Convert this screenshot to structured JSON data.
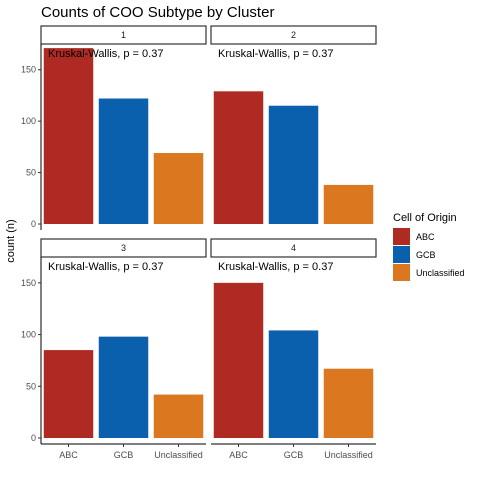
{
  "chart_data": {
    "type": "bar",
    "title": "Counts of COO Subtype by Cluster",
    "ylabel": "count (n)",
    "xlabel": "",
    "categories": [
      "ABC",
      "GCB",
      "Unclassified"
    ],
    "colors": [
      "#AE2A22",
      "#0A60AC",
      "#DA771F"
    ],
    "ylim": [
      0,
      175
    ],
    "y_ticks": [
      0,
      50,
      100,
      150
    ],
    "grid": false,
    "legend": {
      "title": "Cell of Origin",
      "position": "right",
      "entries": [
        "ABC",
        "GCB",
        "Unclassified"
      ]
    },
    "facets": [
      {
        "label": "1",
        "values": [
          171,
          122,
          69
        ],
        "annotation": "Kruskal-Wallis, p = 0.37"
      },
      {
        "label": "2",
        "values": [
          129,
          115,
          38
        ],
        "annotation": "Kruskal-Wallis, p = 0.37"
      },
      {
        "label": "3",
        "values": [
          85,
          98,
          42
        ],
        "annotation": "Kruskal-Wallis, p = 0.37"
      },
      {
        "label": "4",
        "values": [
          150,
          104,
          67
        ],
        "annotation": "Kruskal-Wallis, p = 0.37"
      }
    ]
  }
}
